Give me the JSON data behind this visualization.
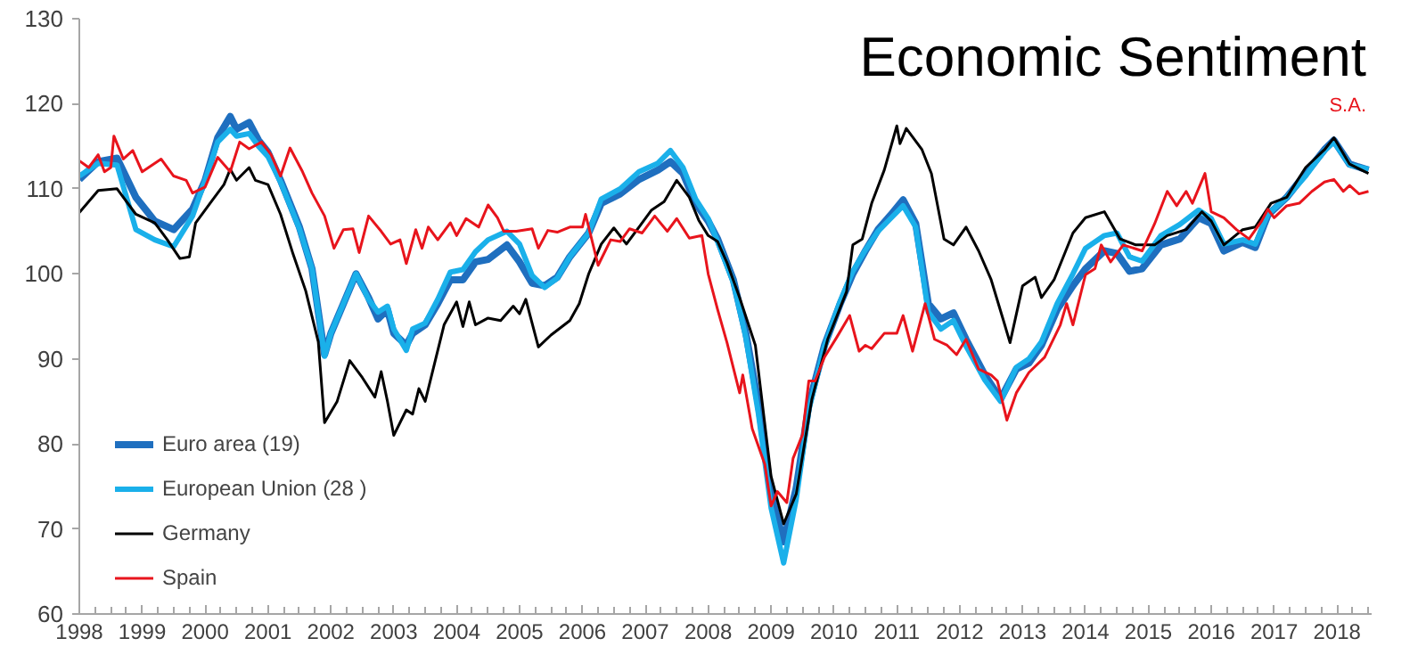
{
  "chart_data": {
    "type": "line",
    "title": "Economic Sentiment",
    "subtitle": "S.A.",
    "xlim": [
      1998,
      2018.55
    ],
    "xticks": [
      1998,
      1999,
      2000,
      2001,
      2002,
      2003,
      2004,
      2005,
      2006,
      2007,
      2008,
      2009,
      2010,
      2011,
      2012,
      2013,
      2014,
      2015,
      2016,
      2017,
      2018
    ],
    "ylim": [
      60,
      130
    ],
    "yticks": [
      60,
      70,
      80,
      90,
      100,
      110,
      120,
      130
    ],
    "grid": false,
    "legend": "bottom left",
    "series": [
      {
        "name": "Euro area (19)",
        "color": "#1f6fbf",
        "x": [
          1998.0,
          1998.3,
          1998.6,
          1998.9,
          1999.2,
          1999.5,
          1999.8,
          2000.0,
          2000.2,
          2000.4,
          2000.5,
          2000.7,
          2000.85,
          2001.0,
          2001.2,
          2001.5,
          2001.7,
          2001.9,
          2002.0,
          2002.2,
          2002.4,
          2002.6,
          2002.75,
          2002.9,
          2003.0,
          2003.2,
          2003.3,
          2003.5,
          2003.7,
          2003.9,
          2004.1,
          2004.3,
          2004.5,
          2004.8,
          2005.0,
          2005.2,
          2005.4,
          2005.6,
          2005.8,
          2006.1,
          2006.3,
          2006.6,
          2006.9,
          2007.2,
          2007.4,
          2007.6,
          2007.8,
          2008.0,
          2008.15,
          2008.4,
          2008.6,
          2008.8,
          2009.0,
          2009.2,
          2009.4,
          2009.6,
          2009.85,
          2010.1,
          2010.3,
          2010.5,
          2010.7,
          2010.9,
          2011.1,
          2011.3,
          2011.5,
          2011.7,
          2011.9,
          2012.1,
          2012.4,
          2012.65,
          2012.9,
          2013.1,
          2013.3,
          2013.55,
          2013.8,
          2014.0,
          2014.3,
          2014.5,
          2014.7,
          2014.9,
          2015.2,
          2015.5,
          2015.8,
          2016.0,
          2016.2,
          2016.5,
          2016.7,
          2016.9,
          2017.2,
          2017.5,
          2017.8,
          2017.95,
          2018.2,
          2018.5
        ],
        "values": [
          111.1,
          113.2,
          113.6,
          109,
          106.2,
          105.2,
          107.6,
          111,
          116,
          118.5,
          117,
          117.8,
          115.7,
          114.3,
          111,
          105.5,
          100.6,
          90.5,
          93,
          96.5,
          100,
          97.2,
          94.7,
          95.8,
          93,
          91.6,
          93,
          94,
          96.5,
          99.3,
          99.3,
          101.4,
          101.7,
          103.4,
          101.4,
          98.9,
          98.6,
          99.6,
          102,
          104.8,
          108.3,
          109.4,
          111.1,
          112.2,
          113.2,
          111.8,
          108.3,
          106.2,
          104.1,
          99.3,
          93,
          84.6,
          74.1,
          68.5,
          74.8,
          84.6,
          91.6,
          96.5,
          100,
          102.7,
          105.2,
          106.9,
          108.7,
          105.9,
          96.5,
          94.7,
          95.4,
          92.3,
          88.1,
          85.3,
          88.8,
          89.5,
          91.6,
          95.8,
          98.6,
          100.6,
          102.7,
          102.4,
          100.3,
          100.6,
          103.4,
          104.1,
          106.6,
          105.9,
          102.7,
          103.7,
          103.1,
          106.9,
          109,
          111.8,
          114.6,
          115.7,
          112.9,
          112.2
        ]
      },
      {
        "name": "European Union (28 )",
        "color": "#1ab0ea",
        "x": [
          1998.0,
          1998.3,
          1998.6,
          1998.9,
          1999.2,
          1999.5,
          1999.8,
          2000.0,
          2000.2,
          2000.4,
          2000.5,
          2000.7,
          2000.85,
          2001.0,
          2001.2,
          2001.5,
          2001.7,
          2001.9,
          2002.0,
          2002.2,
          2002.4,
          2002.6,
          2002.75,
          2002.9,
          2003.0,
          2003.2,
          2003.3,
          2003.5,
          2003.7,
          2003.9,
          2004.1,
          2004.3,
          2004.5,
          2004.8,
          2005.0,
          2005.2,
          2005.4,
          2005.6,
          2005.8,
          2006.1,
          2006.3,
          2006.6,
          2006.9,
          2007.2,
          2007.4,
          2007.6,
          2007.8,
          2008.0,
          2008.15,
          2008.4,
          2008.6,
          2008.8,
          2009.0,
          2009.2,
          2009.4,
          2009.6,
          2009.85,
          2010.1,
          2010.3,
          2010.5,
          2010.7,
          2010.9,
          2011.1,
          2011.3,
          2011.5,
          2011.7,
          2011.9,
          2012.1,
          2012.4,
          2012.65,
          2012.9,
          2013.1,
          2013.3,
          2013.55,
          2013.8,
          2014.0,
          2014.3,
          2014.5,
          2014.7,
          2014.9,
          2015.2,
          2015.5,
          2015.8,
          2016.0,
          2016.2,
          2016.5,
          2016.7,
          2016.9,
          2017.2,
          2017.5,
          2017.8,
          2017.95,
          2018.2,
          2018.5
        ],
        "values": [
          111.5,
          113.0,
          112.8,
          105.2,
          104.0,
          103.2,
          106.8,
          111,
          115.5,
          117.0,
          116.2,
          116.5,
          115.0,
          113.8,
          110.8,
          105.3,
          100.6,
          90.3,
          93,
          96.5,
          100,
          97.0,
          95.5,
          96.2,
          93.5,
          91.0,
          93.5,
          94.2,
          97,
          100.2,
          100.5,
          102.6,
          104.0,
          105.0,
          103.5,
          99.8,
          98.4,
          99.5,
          102,
          104.8,
          108.8,
          110.0,
          112.0,
          113.0,
          114.5,
          112.5,
          108.8,
          106.5,
          103.8,
          99.0,
          92.5,
          83.5,
          72.5,
          66.0,
          73.5,
          84.0,
          91.5,
          96.8,
          100.3,
          102.8,
          105.0,
          106.5,
          108.0,
          105.5,
          95.5,
          93.5,
          94.5,
          91.5,
          87.5,
          85.0,
          89.0,
          90.0,
          92.0,
          96.5,
          100.0,
          103.0,
          104.5,
          104.8,
          102.0,
          101.5,
          104.5,
          105.8,
          107.5,
          106.5,
          103.5,
          104.0,
          103.5,
          107.0,
          109.0,
          111.5,
          114.5,
          115.5,
          112.8,
          112.3
        ]
      },
      {
        "name": "Germany",
        "color": "#000000",
        "x": [
          1998.0,
          1998.3,
          1998.6,
          1998.9,
          1999.2,
          1999.4,
          1999.6,
          1999.75,
          1999.85,
          2000.1,
          2000.3,
          2000.4,
          2000.5,
          2000.7,
          2000.8,
          2001.0,
          2001.2,
          2001.4,
          2001.6,
          2001.8,
          2001.9,
          2002.1,
          2002.3,
          2002.5,
          2002.7,
          2002.8,
          2002.9,
          2003.0,
          2003.2,
          2003.3,
          2003.4,
          2003.5,
          2003.6,
          2003.8,
          2004.0,
          2004.1,
          2004.2,
          2004.3,
          2004.5,
          2004.7,
          2004.9,
          2005.0,
          2005.1,
          2005.3,
          2005.5,
          2005.8,
          2005.95,
          2006.1,
          2006.3,
          2006.5,
          2006.7,
          2006.9,
          2007.1,
          2007.3,
          2007.5,
          2007.7,
          2007.85,
          2008.0,
          2008.15,
          2008.3,
          2008.5,
          2008.75,
          2009.0,
          2009.2,
          2009.4,
          2009.65,
          2009.9,
          2010.2,
          2010.3,
          2010.45,
          2010.6,
          2010.8,
          2011.0,
          2011.05,
          2011.15,
          2011.4,
          2011.55,
          2011.75,
          2011.9,
          2012.1,
          2012.3,
          2012.5,
          2012.7,
          2012.8,
          2013.0,
          2013.2,
          2013.3,
          2013.5,
          2013.8,
          2014.0,
          2014.3,
          2014.55,
          2014.8,
          2015.1,
          2015.3,
          2015.6,
          2015.85,
          2016.0,
          2016.2,
          2016.5,
          2016.7,
          2016.95,
          2017.2,
          2017.5,
          2017.8,
          2017.95,
          2018.2,
          2018.5
        ],
        "values": [
          107.2,
          109.8,
          110,
          107,
          106,
          104,
          101.8,
          102,
          106,
          108.5,
          110.5,
          112.3,
          111,
          112.5,
          111,
          110.5,
          107,
          102.3,
          98,
          92,
          82.5,
          85,
          89.8,
          87.8,
          85.5,
          88.5,
          85,
          81,
          84,
          83.5,
          86.5,
          85,
          88,
          94,
          96.7,
          93.8,
          96.7,
          94,
          94.8,
          94.5,
          96.2,
          95.3,
          97,
          91.4,
          92.8,
          94.5,
          96.5,
          100,
          103.5,
          105.4,
          103.5,
          105.5,
          107.5,
          108.5,
          111,
          109,
          106.3,
          104.5,
          103.8,
          101.3,
          97.2,
          91.6,
          76.2,
          70.6,
          74.1,
          85.3,
          92.3,
          97.9,
          103.4,
          104.1,
          108.3,
          112.2,
          117.4,
          115.3,
          117.1,
          114.6,
          111.8,
          104.1,
          103.4,
          105.5,
          102.7,
          99.3,
          94.4,
          91.9,
          98.6,
          99.6,
          97.2,
          99.3,
          104.8,
          106.6,
          107.3,
          104.1,
          103.4,
          103.4,
          104.5,
          105.2,
          107.3,
          106.2,
          103.4,
          105.2,
          105.5,
          108.3,
          109,
          112.5,
          114.6,
          116,
          112.9,
          111.8
        ]
      },
      {
        "name": "Spain",
        "color": "#e8141c",
        "x": [
          1998.0,
          1998.15,
          1998.3,
          1998.4,
          1998.5,
          1998.55,
          1998.7,
          1998.85,
          1999.0,
          1999.3,
          1999.5,
          1999.7,
          1999.8,
          2000.0,
          2000.2,
          2000.4,
          2000.55,
          2000.7,
          2000.9,
          2001.05,
          2001.2,
          2001.35,
          2001.55,
          2001.7,
          2001.9,
          2002.05,
          2002.2,
          2002.35,
          2002.45,
          2002.6,
          2002.8,
          2002.95,
          2003.1,
          2003.2,
          2003.35,
          2003.45,
          2003.55,
          2003.7,
          2003.9,
          2004.0,
          2004.15,
          2004.35,
          2004.5,
          2004.65,
          2004.75,
          2004.95,
          2005.2,
          2005.3,
          2005.45,
          2005.6,
          2005.8,
          2006.0,
          2006.05,
          2006.25,
          2006.45,
          2006.6,
          2006.75,
          2006.95,
          2007.15,
          2007.35,
          2007.5,
          2007.7,
          2007.9,
          2008.0,
          2008.15,
          2008.3,
          2008.5,
          2008.55,
          2008.7,
          2008.9,
          2009.0,
          2009.1,
          2009.25,
          2009.35,
          2009.5,
          2009.6,
          2009.7,
          2009.85,
          2010.05,
          2010.25,
          2010.4,
          2010.5,
          2010.6,
          2010.8,
          2011.0,
          2011.1,
          2011.25,
          2011.45,
          2011.6,
          2011.8,
          2011.95,
          2012.1,
          2012.3,
          2012.5,
          2012.6,
          2012.75,
          2012.9,
          2013.1,
          2013.35,
          2013.6,
          2013.7,
          2013.8,
          2014.0,
          2014.15,
          2014.25,
          2014.4,
          2014.6,
          2014.9,
          2015.1,
          2015.3,
          2015.45,
          2015.6,
          2015.7,
          2015.9,
          2016.0,
          2016.2,
          2016.4,
          2016.6,
          2016.8,
          2016.9,
          2017.0,
          2017.2,
          2017.4,
          2017.6,
          2017.8,
          2017.95,
          2018.1,
          2018.2,
          2018.35,
          2018.5
        ],
        "values": [
          113.3,
          112.5,
          114,
          112,
          112.5,
          116.2,
          113.5,
          114.5,
          112,
          113.5,
          111.5,
          111,
          109.5,
          110.2,
          113.7,
          112,
          115.5,
          114.7,
          115.5,
          114,
          111.5,
          114.8,
          112,
          109.5,
          106.8,
          103,
          105.2,
          105.3,
          102.5,
          106.8,
          105,
          103.5,
          104,
          101.2,
          105.2,
          103,
          105.5,
          104,
          106,
          104.5,
          106.5,
          105.5,
          108.1,
          106.6,
          105,
          105,
          105.3,
          103,
          105.1,
          104.9,
          105.5,
          105.5,
          107,
          101,
          104,
          103.8,
          105.3,
          104.8,
          106.8,
          105,
          106.5,
          104.2,
          104.5,
          100,
          95.8,
          91.9,
          86,
          88.1,
          81.8,
          77.6,
          72.7,
          74.4,
          73.1,
          78.3,
          81.1,
          87.4,
          87.4,
          90.2,
          92.6,
          95.1,
          90.9,
          91.6,
          91.2,
          93,
          93,
          95.1,
          90.9,
          96.5,
          92.3,
          91.6,
          90.5,
          92.3,
          88.8,
          88.1,
          87.4,
          82.8,
          86,
          88.4,
          90.2,
          94,
          96.5,
          94,
          99.9,
          100.6,
          103.4,
          101.4,
          103.4,
          102.7,
          105.9,
          109.7,
          108,
          109.7,
          108.3,
          111.8,
          107.3,
          106.6,
          105.2,
          104.1,
          106.2,
          107.6,
          106.6,
          108,
          108.3,
          109.7,
          110.8,
          111.1,
          109.7,
          110.4,
          109.4,
          109.7
        ]
      }
    ]
  }
}
